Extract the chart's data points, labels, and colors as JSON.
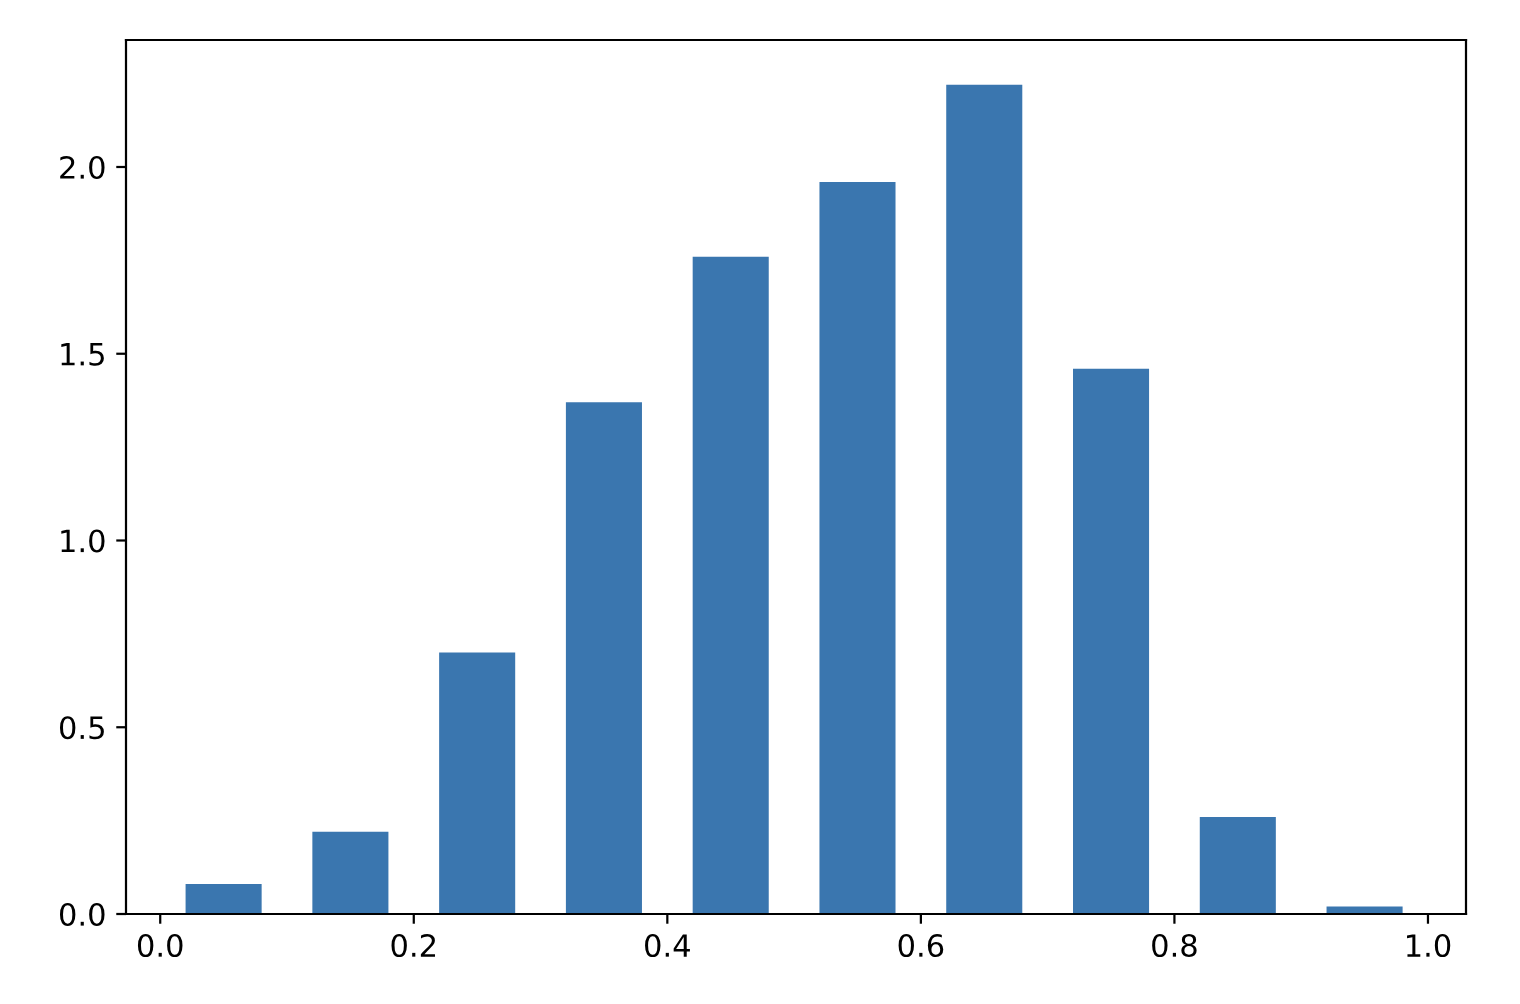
{
  "chart_data": {
    "type": "histogram",
    "bins": [
      0.0,
      0.1,
      0.2,
      0.3,
      0.4,
      0.5,
      0.6,
      0.7,
      0.8,
      0.9,
      1.0
    ],
    "values": [
      0.08,
      0.22,
      0.7,
      1.37,
      1.76,
      1.96,
      2.22,
      1.46,
      0.26,
      0.02
    ],
    "color": "#3a76af",
    "xlim": [
      -0.027,
      1.03
    ],
    "xticks": [
      {
        "value": 0,
        "label": "0.0"
      },
      0.2,
      0.4,
      0.6,
      0.8,
      {
        "value": 1,
        "label": "1.0"
      }
    ],
    "ylim": [
      0,
      2.34
    ],
    "yticks": [
      {
        "value": 0,
        "label": "0.0"
      },
      0.5,
      {
        "value": 1,
        "label": "1.0"
      },
      1.5,
      {
        "value": 2,
        "label": "2.0"
      }
    ],
    "grid": false
  }
}
